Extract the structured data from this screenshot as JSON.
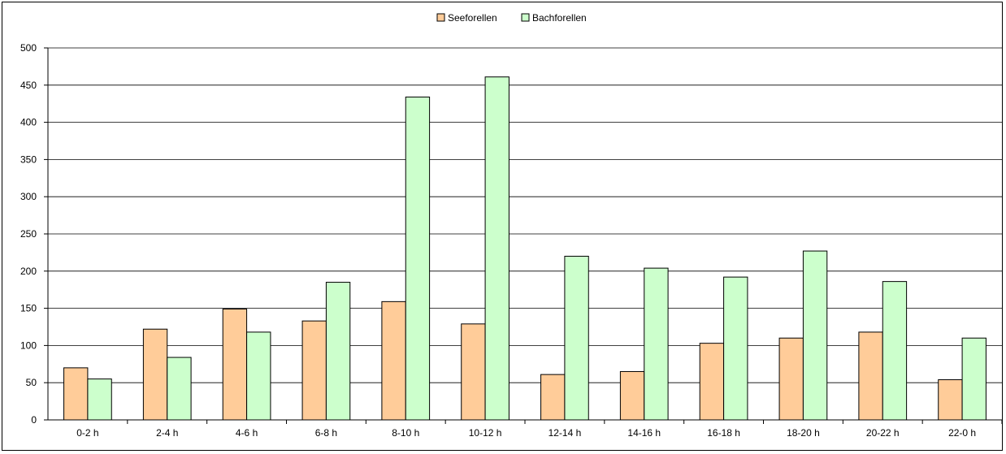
{
  "chart_data": {
    "type": "bar",
    "categories": [
      "0-2 h",
      "2-4 h",
      "4-6 h",
      "6-8 h",
      "8-10 h",
      "10-12 h",
      "12-14 h",
      "14-16 h",
      "16-18 h",
      "18-20 h",
      "20-22 h",
      "22-0 h"
    ],
    "series": [
      {
        "name": "Seeforellen",
        "color": "#ffcc99",
        "values": [
          70,
          122,
          149,
          133,
          159,
          129,
          61,
          65,
          103,
          110,
          118,
          54
        ]
      },
      {
        "name": "Bachforellen",
        "color": "#ccffcc",
        "values": [
          55,
          84,
          118,
          185,
          434,
          461,
          220,
          204,
          192,
          227,
          186,
          110
        ]
      }
    ],
    "ylim": [
      0,
      500
    ],
    "yticks": [
      "0",
      "50",
      "100",
      "150",
      "200",
      "250",
      "300",
      "350",
      "400",
      "450",
      "500"
    ],
    "grid": true,
    "legend_position": "top"
  }
}
